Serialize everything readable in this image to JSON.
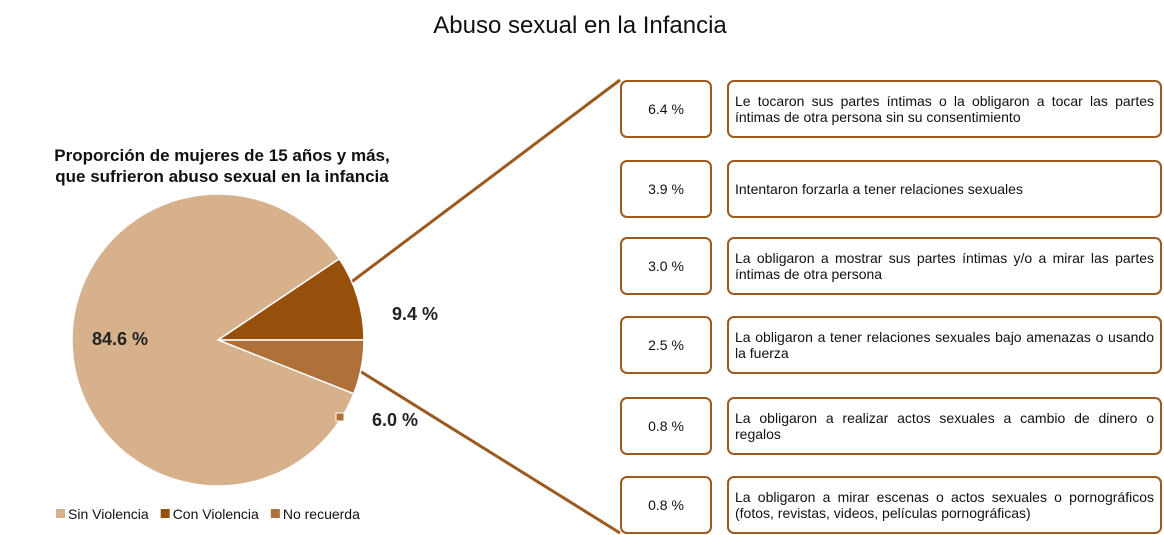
{
  "title": "Abuso sexual en la Infancia",
  "chart_data": {
    "type": "pie",
    "subtitle": [
      "Proporción de mujeres de 15 años y más,",
      "que sufrieron abuso sexual en la infancia"
    ],
    "categories": [
      "Sin Violencia",
      "Con Violencia",
      "No recuerda"
    ],
    "values": [
      84.6,
      9.4,
      6.0
    ],
    "value_labels": [
      "84.6 %",
      "9.4 %",
      "6.0 %"
    ],
    "colors": [
      "#d6b18c",
      "#96500c",
      "#b0703a"
    ],
    "legend": "bottom"
  },
  "breakdown": {
    "values": [
      6.4,
      3.9,
      3.0,
      2.5,
      0.8,
      0.8
    ],
    "value_labels": [
      "6.4 %",
      "3.9 %",
      "3.0 %",
      "2.5 %",
      "0.8 %",
      "0.8 %"
    ],
    "labels": [
      "Le tocaron sus partes íntimas o la obligaron a tocar las partes íntimas de otra persona sin su consentimiento",
      "Intentaron forzarla a tener relaciones sexuales",
      "La obligaron a mostrar sus partes íntimas y/o a mirar las partes íntimas de otra persona",
      "La obligaron a tener relaciones sexuales bajo amenazas o usando la fuerza",
      "La obligaron a realizar actos sexuales a cambio de dinero o regalos",
      "La obligaron a mirar escenas o actos sexuales o pornográficos (fotos, revistas, videos, películas pornográficas)"
    ]
  }
}
